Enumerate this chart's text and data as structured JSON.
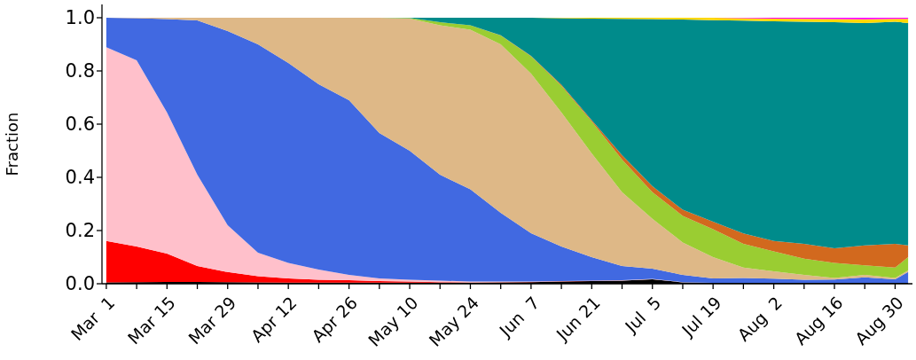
{
  "chart_data": {
    "type": "area",
    "stacked": true,
    "ylabel": "Fraction",
    "x": [
      "--03-01",
      "--03-08",
      "--03-15",
      "--03-22",
      "--03-29",
      "--04-05",
      "--04-12",
      "--04-19",
      "--04-26",
      "--05-03",
      "--05-10",
      "--05-17",
      "--05-24",
      "--05-31",
      "--06-07",
      "--06-14",
      "--06-21",
      "--06-28",
      "--07-05",
      "--07-12",
      "--07-19",
      "--07-26",
      "--08-02",
      "--08-09",
      "--08-16",
      "--08-23",
      "--08-30",
      "--09-02"
    ],
    "series": [
      {
        "color": "#000000",
        "values": [
          0.005,
          0.006,
          0.007,
          0.007,
          0.006,
          0.005,
          0.004,
          0.004,
          0.004,
          0.004,
          0.004,
          0.004,
          0.004,
          0.005,
          0.006,
          0.008,
          0.01,
          0.012,
          0.017,
          0.005,
          0.003,
          0.003,
          0.003,
          0.003,
          0.003,
          0.003,
          0.003,
          0.003
        ]
      },
      {
        "color": "#ff0000",
        "values": [
          0.156,
          0.134,
          0.106,
          0.06,
          0.038,
          0.023,
          0.016,
          0.011,
          0.009,
          0.006,
          0.004,
          0.002,
          0.001,
          0.001,
          0.001,
          0.001,
          0.001,
          0,
          0,
          0,
          0,
          0,
          0,
          0,
          0,
          0,
          0,
          0
        ]
      },
      {
        "color": "#ffc0cb",
        "values": [
          0.728,
          0.7,
          0.531,
          0.343,
          0.176,
          0.089,
          0.058,
          0.038,
          0.02,
          0.01,
          0.007,
          0.006,
          0.003,
          0.002,
          0.001,
          0.001,
          0.001,
          0.001,
          0.001,
          0.001,
          0,
          0,
          0,
          0,
          0,
          0,
          0,
          0
        ]
      },
      {
        "color": "#4169e1",
        "values": [
          0.111,
          0.158,
          0.351,
          0.58,
          0.73,
          0.783,
          0.752,
          0.697,
          0.657,
          0.547,
          0.485,
          0.398,
          0.347,
          0.259,
          0.182,
          0.13,
          0.088,
          0.054,
          0.039,
          0.027,
          0.017,
          0.019,
          0.016,
          0.012,
          0.013,
          0.021,
          0.014,
          0.041
        ]
      },
      {
        "color": "#deb887",
        "values": [
          0,
          0.002,
          0.005,
          0.01,
          0.05,
          0.1,
          0.17,
          0.25,
          0.31,
          0.433,
          0.497,
          0.562,
          0.6,
          0.633,
          0.6,
          0.504,
          0.39,
          0.277,
          0.187,
          0.122,
          0.08,
          0.039,
          0.028,
          0.018,
          0.006,
          0.009,
          0.005,
          0.006
        ]
      },
      {
        "color": "#9acd32",
        "values": [
          0,
          0,
          0,
          0,
          0,
          0,
          0,
          0,
          0,
          0,
          0.002,
          0.011,
          0.017,
          0.033,
          0.065,
          0.1,
          0.12,
          0.123,
          0.1,
          0.1,
          0.105,
          0.089,
          0.075,
          0.061,
          0.056,
          0.036,
          0.039,
          0.05
        ]
      },
      {
        "color": "#d2691e",
        "values": [
          0,
          0,
          0,
          0,
          0,
          0,
          0,
          0,
          0,
          0,
          0,
          0,
          0,
          0.001,
          0.002,
          0.004,
          0.005,
          0.016,
          0.023,
          0.023,
          0.028,
          0.039,
          0.039,
          0.056,
          0.055,
          0.075,
          0.089,
          0.044
        ]
      },
      {
        "color": "#008b8b",
        "values": [
          0,
          0,
          0,
          0,
          0,
          0,
          0,
          0,
          0,
          0,
          0.001,
          0.017,
          0.028,
          0.066,
          0.143,
          0.25,
          0.382,
          0.513,
          0.628,
          0.715,
          0.758,
          0.8,
          0.826,
          0.835,
          0.85,
          0.836,
          0.835,
          0.836
        ]
      },
      {
        "color": "#ffd700",
        "values": [
          0,
          0,
          0,
          0,
          0,
          0,
          0,
          0,
          0,
          0,
          0,
          0,
          0,
          0,
          0,
          0.002,
          0.003,
          0.004,
          0.005,
          0.007,
          0.009,
          0.009,
          0.01,
          0.011,
          0.012,
          0.014,
          0.011,
          0.016
        ]
      },
      {
        "color": "#ff00ff",
        "values": [
          0,
          0,
          0,
          0,
          0,
          0,
          0,
          0,
          0,
          0,
          0,
          0,
          0,
          0,
          0,
          0,
          0,
          0,
          0,
          0,
          0,
          0.002,
          0.003,
          0.004,
          0.005,
          0.006,
          0.004,
          0.004
        ]
      }
    ],
    "xlim": [
      "--02-28",
      "--09-03"
    ],
    "xticks": [
      {
        "value": "--03-01",
        "label": "Mar  1"
      },
      {
        "value": "--03-08",
        "label": null
      },
      {
        "value": "--03-15",
        "label": "Mar 15"
      },
      {
        "value": "--03-22",
        "label": null
      },
      {
        "value": "--03-29",
        "label": "Mar 29"
      },
      {
        "value": "--04-05",
        "label": null
      },
      {
        "value": "--04-12",
        "label": "Apr 12"
      },
      {
        "value": "--04-19",
        "label": null
      },
      {
        "value": "--04-26",
        "label": "Apr 26"
      },
      {
        "value": "--05-03",
        "label": null
      },
      {
        "value": "--05-10",
        "label": "May 10"
      },
      {
        "value": "--05-17",
        "label": null
      },
      {
        "value": "--05-24",
        "label": "May 24"
      },
      {
        "value": "--05-31",
        "label": null
      },
      {
        "value": "--06-07",
        "label": "Jun  7"
      },
      {
        "value": "--06-14",
        "label": null
      },
      {
        "value": "--06-21",
        "label": "Jun 21"
      },
      {
        "value": "--06-28",
        "label": null
      },
      {
        "value": "--07-05",
        "label": "Jul  5"
      },
      {
        "value": "--07-12",
        "label": null
      },
      {
        "value": "--07-19",
        "label": "Jul 19"
      },
      {
        "value": "--07-26",
        "label": null
      },
      {
        "value": "--08-02",
        "label": "Aug  2"
      },
      {
        "value": "--08-09",
        "label": null
      },
      {
        "value": "--08-16",
        "label": "Aug 16"
      },
      {
        "value": "--08-23",
        "label": null
      },
      {
        "value": "--08-30",
        "label": "Aug 30"
      }
    ],
    "ylim": [
      0,
      1.05
    ],
    "yticks": [
      {
        "value": 0,
        "label": "0.0"
      },
      {
        "value": 0.2,
        "label": "0.2"
      },
      {
        "value": 0.4,
        "label": "0.4"
      },
      {
        "value": 0.6,
        "label": "0.6"
      },
      {
        "value": 0.8,
        "label": "0.8"
      },
      {
        "value": 1,
        "label": "1.0"
      }
    ]
  }
}
